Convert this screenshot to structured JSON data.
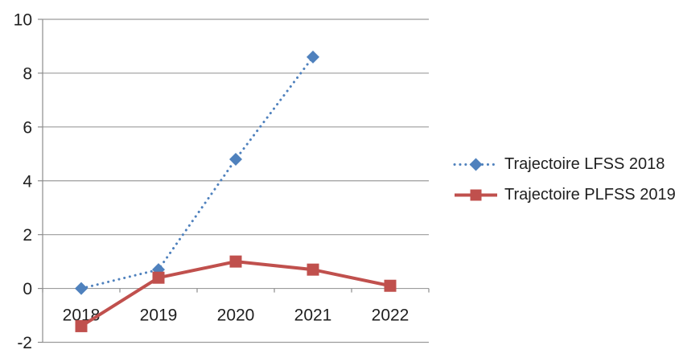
{
  "chart_data": {
    "type": "line",
    "title": "",
    "xlabel": "",
    "ylabel": "",
    "categories": [
      "2018",
      "2019",
      "2020",
      "2021",
      "2022"
    ],
    "series": [
      {
        "name": "Trajectoire LFSS 2018",
        "values": [
          0,
          0.7,
          4.8,
          8.6,
          null
        ],
        "color": "#4F81BD",
        "marker": "diamond",
        "line_style": "dotted",
        "line_width": 3
      },
      {
        "name": "Trajectoire PLFSS 2019",
        "values": [
          -1.4,
          0.4,
          1.0,
          0.7,
          0.1
        ],
        "color": "#C0504D",
        "marker": "square",
        "line_style": "solid",
        "line_width": 4
      }
    ],
    "ylim": [
      -2,
      10
    ],
    "yticks": [
      -2,
      0,
      2,
      4,
      6,
      8,
      10
    ],
    "grid": true,
    "legend_position": "right",
    "grid_color": "#9c9c9c",
    "axis_color": "#8c8c8c",
    "text_color": "#1f1f1f",
    "background": "#ffffff"
  }
}
